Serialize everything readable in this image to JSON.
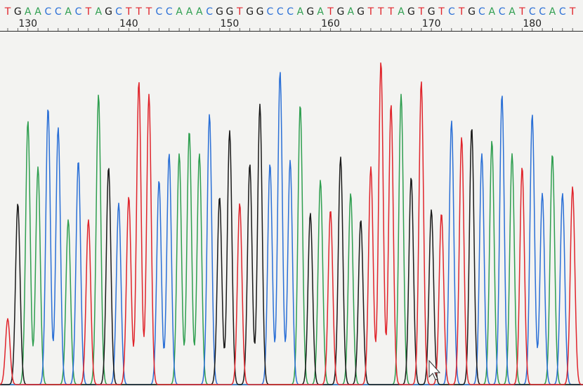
{
  "chart_data": {
    "type": "line",
    "sequence": "TGAACCACTAGCTTTCCAAACGGTGGCCCAGATGAGTTTAGTGTCTGCACATCCACT",
    "positions": [
      "130",
      "140",
      "150",
      "160",
      "170",
      "180"
    ],
    "position_start": 128,
    "colors": {
      "A": "#2e9e4f",
      "C": "#2a6fd6",
      "G": "#1a1a1a",
      "T": "#e0242b"
    },
    "peak_heights": [
      0.2,
      0.55,
      0.8,
      0.66,
      0.84,
      0.78,
      0.5,
      0.68,
      0.5,
      0.88,
      0.66,
      0.55,
      0.57,
      0.92,
      0.88,
      0.62,
      0.7,
      0.7,
      0.77,
      0.7,
      0.82,
      0.57,
      0.77,
      0.55,
      0.67,
      0.85,
      0.67,
      0.95,
      0.68,
      0.85,
      0.52,
      0.62,
      0.53,
      0.69,
      0.58,
      0.5,
      0.66,
      0.98,
      0.85,
      0.88,
      0.63,
      0.92,
      0.53,
      0.52,
      0.8,
      0.75,
      0.78,
      0.7,
      0.74,
      0.88,
      0.7,
      0.66,
      0.82,
      0.58,
      0.7,
      0.58,
      0.6
    ]
  }
}
